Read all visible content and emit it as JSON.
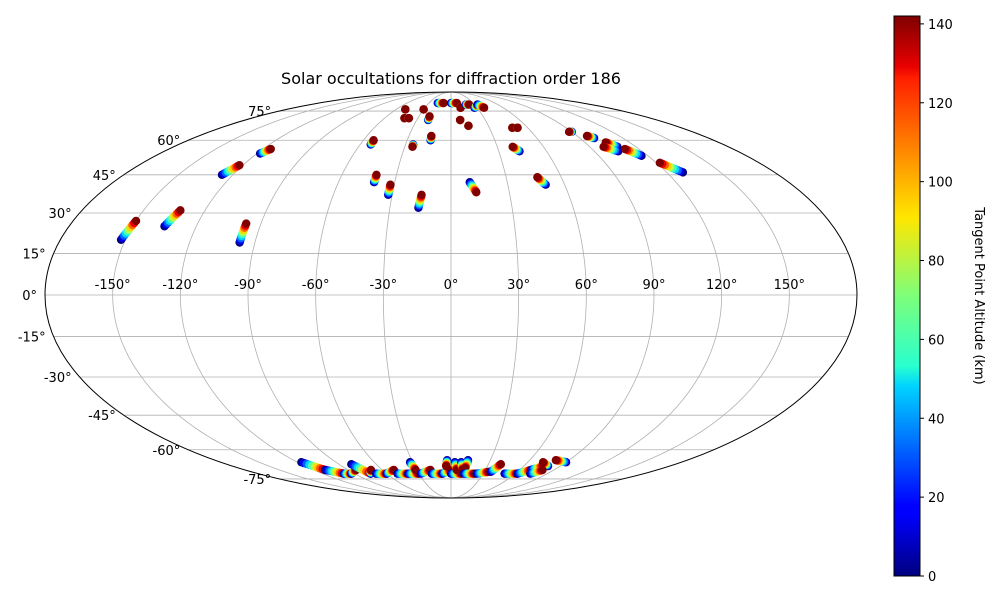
{
  "chart_data": {
    "type": "scatter",
    "projection": "mollweide",
    "title": "Solar occultations for diffraction order 186",
    "grid": true,
    "lon_ticks": [
      {
        "value": -150,
        "label": "-150°"
      },
      {
        "value": -120,
        "label": "-120°"
      },
      {
        "value": -90,
        "label": "-90°"
      },
      {
        "value": -60,
        "label": "-60°"
      },
      {
        "value": -30,
        "label": "-30°"
      },
      {
        "value": 0,
        "label": "0°"
      },
      {
        "value": 30,
        "label": "30°"
      },
      {
        "value": 60,
        "label": "60°"
      },
      {
        "value": 90,
        "label": "90°"
      },
      {
        "value": 120,
        "label": "120°"
      },
      {
        "value": 150,
        "label": "150°"
      }
    ],
    "lat_ticks": [
      {
        "value": 75,
        "label": "75°"
      },
      {
        "value": 60,
        "label": "60°"
      },
      {
        "value": 45,
        "label": "45°"
      },
      {
        "value": 30,
        "label": "30°"
      },
      {
        "value": 15,
        "label": "15°"
      },
      {
        "value": 0,
        "label": "0°"
      },
      {
        "value": -15,
        "label": "-15°"
      },
      {
        "value": -30,
        "label": "-30°"
      },
      {
        "value": -45,
        "label": "-45°"
      },
      {
        "value": -60,
        "label": "-60°"
      },
      {
        "value": -75,
        "label": "-75°"
      }
    ],
    "colorbar": {
      "label": "Tangent Point Altitude (km)",
      "min": 0,
      "max": 142,
      "colormap": "jet",
      "ticks": [
        {
          "value": 0,
          "label": "0"
        },
        {
          "value": 20,
          "label": "20"
        },
        {
          "value": 40,
          "label": "40"
        },
        {
          "value": 60,
          "label": "60"
        },
        {
          "value": 80,
          "label": "80"
        },
        {
          "value": 100,
          "label": "100"
        },
        {
          "value": 120,
          "label": "120"
        },
        {
          "value": 140,
          "label": "140"
        }
      ]
    },
    "tracks": [
      {
        "lon_start": -152,
        "lat_start": 20,
        "lon_end": -150,
        "lat_end": 27
      },
      {
        "lon_start": -135,
        "lat_start": 25,
        "lon_end": -132,
        "lat_end": 31
      },
      {
        "lon_start": -126,
        "lat_start": 45,
        "lon_end": -122,
        "lat_end": 49
      },
      {
        "lon_start": -118,
        "lat_start": 54,
        "lon_end": -115,
        "lat_end": 56
      },
      {
        "lon_start": -97,
        "lat_start": 19,
        "lon_end": -97,
        "lat_end": 26
      },
      {
        "lon_start": -53,
        "lat_start": 58,
        "lon_end": -53,
        "lat_end": 60
      },
      {
        "lon_start": -41,
        "lat_start": 42,
        "lon_end": -41,
        "lat_end": 45
      },
      {
        "lon_start": -32,
        "lat_start": 37,
        "lon_end": -32,
        "lat_end": 41
      },
      {
        "lon_start": -25,
        "lat_start": 58,
        "lon_end": -25,
        "lat_end": 57
      },
      {
        "lon_start": -16,
        "lat_start": 32,
        "lon_end": -15,
        "lat_end": 37
      },
      {
        "lon_start": -14,
        "lat_start": 60,
        "lon_end": -14,
        "lat_end": 62
      },
      {
        "lon_start": -42,
        "lat_start": 71,
        "lon_end": -42,
        "lat_end": 71
      },
      {
        "lon_start": -50,
        "lat_start": 76,
        "lon_end": -50,
        "lat_end": 76
      },
      {
        "lon_start": -38,
        "lat_start": 71,
        "lon_end": -38,
        "lat_end": 71
      },
      {
        "lon_start": -30,
        "lat_start": 76,
        "lon_end": -30,
        "lat_end": 76
      },
      {
        "lon_start": -20,
        "lat_start": 70,
        "lon_end": -20,
        "lat_end": 72
      },
      {
        "lon_start": -18,
        "lat_start": 80,
        "lon_end": -10,
        "lat_end": 80
      },
      {
        "lon_start": 0,
        "lat_start": 80,
        "lon_end": 8,
        "lat_end": 80
      },
      {
        "lon_start": 8,
        "lat_start": 70,
        "lon_end": 8,
        "lat_end": 70
      },
      {
        "lon_start": 11,
        "lat_start": 77,
        "lon_end": 11,
        "lat_end": 77
      },
      {
        "lon_start": 10,
        "lat_start": 42,
        "lon_end": 13,
        "lat_end": 38
      },
      {
        "lon_start": 14,
        "lat_start": 67,
        "lon_end": 14,
        "lat_end": 67
      },
      {
        "lon_start": 19,
        "lat_start": 79,
        "lon_end": 23,
        "lat_end": 79
      },
      {
        "lon_start": 27,
        "lat_start": 77,
        "lon_end": 34,
        "lat_end": 79
      },
      {
        "lon_start": 34,
        "lat_start": 79,
        "lon_end": 38,
        "lat_end": 77
      },
      {
        "lon_start": 43,
        "lat_start": 55,
        "lon_end": 40,
        "lat_end": 57
      },
      {
        "lon_start": 50,
        "lat_start": 41,
        "lon_end": 47,
        "lat_end": 44
      },
      {
        "lon_start": 48,
        "lat_start": 66,
        "lon_end": 48,
        "lat_end": 66
      },
      {
        "lon_start": 52,
        "lat_start": 66,
        "lon_end": 52,
        "lat_end": 66
      },
      {
        "lon_start": 90,
        "lat_start": 64,
        "lon_end": 88,
        "lat_end": 64
      },
      {
        "lon_start": 100,
        "lat_start": 61,
        "lon_end": 97,
        "lat_end": 62
      },
      {
        "lon_start": 108,
        "lat_start": 57,
        "lon_end": 104,
        "lat_end": 59
      },
      {
        "lon_start": 105,
        "lat_start": 55,
        "lon_end": 99,
        "lat_end": 57
      },
      {
        "lon_start": 116,
        "lat_start": 53,
        "lon_end": 111,
        "lat_end": 56
      },
      {
        "lon_start": 129,
        "lat_start": 46,
        "lon_end": 122,
        "lat_end": 50
      },
      {
        "lon_start": -117,
        "lat_start": -66,
        "lon_end": -110,
        "lat_end": -70
      },
      {
        "lon_start": -110,
        "lat_start": -70,
        "lon_end": -100,
        "lat_end": -72
      },
      {
        "lon_start": -100,
        "lat_start": -72,
        "lon_end": -93,
        "lat_end": -72
      },
      {
        "lon_start": -93,
        "lat_start": -72,
        "lon_end": -83,
        "lat_end": -70
      },
      {
        "lon_start": -80,
        "lat_start": -67,
        "lon_end": -75,
        "lat_end": -72
      },
      {
        "lon_start": -75,
        "lat_start": -72,
        "lon_end": -70,
        "lat_end": -70
      },
      {
        "lon_start": -70,
        "lat_start": -72,
        "lon_end": -60,
        "lat_end": -72
      },
      {
        "lon_start": -60,
        "lat_start": -72,
        "lon_end": -50,
        "lat_end": -70
      },
      {
        "lon_start": -50,
        "lat_start": -72,
        "lon_end": -40,
        "lat_end": -72
      },
      {
        "lon_start": -40,
        "lat_start": -72,
        "lon_end": -30,
        "lat_end": -72
      },
      {
        "lon_start": -32,
        "lat_start": -66,
        "lon_end": -31,
        "lat_end": -70
      },
      {
        "lon_start": -28,
        "lat_start": -72,
        "lon_end": -18,
        "lat_end": -70
      },
      {
        "lon_start": -18,
        "lat_start": -72,
        "lon_end": -8,
        "lat_end": -72
      },
      {
        "lon_start": -8,
        "lat_start": -72,
        "lon_end": 0,
        "lat_end": -70
      },
      {
        "lon_start": 0,
        "lat_start": -72,
        "lon_end": 10,
        "lat_end": -72
      },
      {
        "lon_start": -3,
        "lat_start": -65,
        "lon_end": -4,
        "lat_end": -68
      },
      {
        "lon_start": 3,
        "lat_start": -66,
        "lon_end": 5,
        "lat_end": -70
      },
      {
        "lon_start": 8,
        "lat_start": -66,
        "lon_end": 10,
        "lat_end": -70
      },
      {
        "lon_start": 13,
        "lat_start": -65,
        "lon_end": 12,
        "lat_end": -69
      },
      {
        "lon_start": 12,
        "lat_start": -72,
        "lon_end": 22,
        "lat_end": -72
      },
      {
        "lon_start": 24,
        "lat_start": -72,
        "lon_end": 34,
        "lat_end": -71
      },
      {
        "lon_start": 36,
        "lat_start": -71,
        "lon_end": 40,
        "lat_end": -67
      },
      {
        "lon_start": 50,
        "lat_start": -72,
        "lon_end": 62,
        "lat_end": -72
      },
      {
        "lon_start": 62,
        "lat_start": -72,
        "lon_end": 70,
        "lat_end": -70
      },
      {
        "lon_start": 70,
        "lat_start": -70,
        "lon_end": 76,
        "lat_end": -68
      },
      {
        "lon_start": 80,
        "lat_start": -68,
        "lon_end": 72,
        "lat_end": -66
      },
      {
        "lon_start": 90,
        "lat_start": -66,
        "lon_end": 80,
        "lat_end": -65
      },
      {
        "lon_start": 74,
        "lat_start": -72,
        "lon_end": 80,
        "lat_end": -70
      }
    ]
  }
}
